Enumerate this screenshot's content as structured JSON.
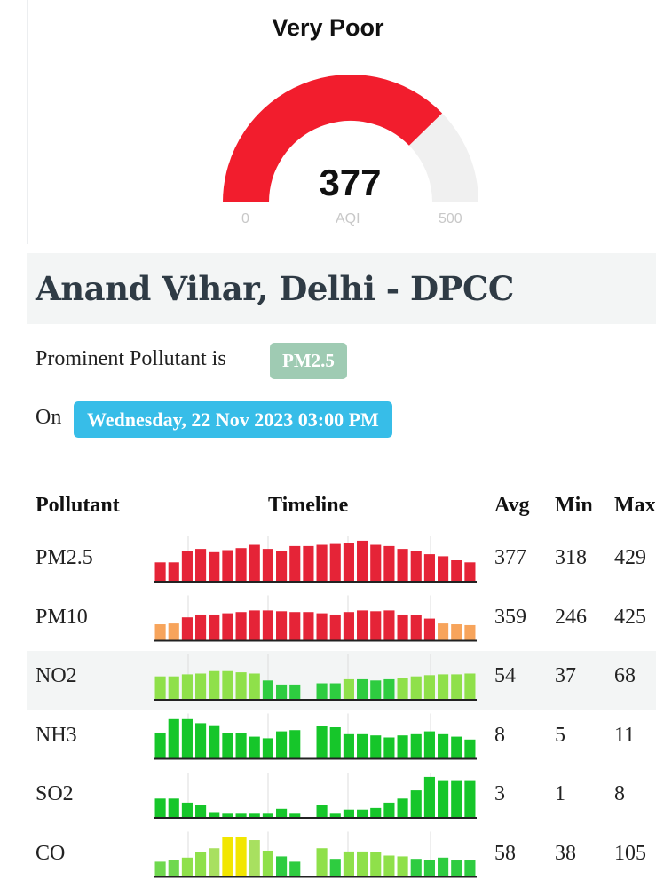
{
  "gauge": {
    "status": "Very Poor",
    "value": "377",
    "min": "0",
    "max": "500",
    "unit": "AQI",
    "fill_fraction": 0.754,
    "color_fill": "#f21d2d",
    "color_track": "#f0f0f0"
  },
  "station": {
    "name": "Anand Vihar, Delhi - DPCC"
  },
  "prominent": {
    "label": "Prominent Pollutant is",
    "value": "PM2.5",
    "color": "#9fcbb3"
  },
  "timestamp": {
    "label": "On",
    "value": "Wednesday, 22 Nov 2023 03:00 PM",
    "color": "#37bde8"
  },
  "table": {
    "headers": {
      "pollutant": "Pollutant",
      "timeline": "Timeline",
      "avg": "Avg",
      "min": "Min",
      "max": "Max"
    },
    "rows": [
      {
        "name": "PM2.5",
        "avg": "377",
        "min": "318",
        "max": "429",
        "timeline": [
          0.45,
          0.45,
          0.72,
          0.78,
          0.7,
          0.75,
          0.8,
          0.88,
          0.78,
          0.72,
          0.85,
          0.85,
          0.88,
          0.9,
          0.92,
          0.98,
          0.88,
          0.85,
          0.78,
          0.72,
          0.65,
          0.6,
          0.5,
          0.45
        ],
        "colors": [
          "#e52437",
          "#e52437",
          "#e52437",
          "#e52437",
          "#e52437",
          "#e52437",
          "#e52437",
          "#e52437",
          "#e52437",
          "#e52437",
          "#e52437",
          "#e52437",
          "#e52437",
          "#e52437",
          "#e52437",
          "#e52437",
          "#e52437",
          "#e52437",
          "#e52437",
          "#e52437",
          "#e52437",
          "#e52437",
          "#e52437",
          "#e52437"
        ]
      },
      {
        "name": "PM10",
        "avg": "359",
        "min": "246",
        "max": "425",
        "timeline": [
          0.38,
          0.4,
          0.55,
          0.62,
          0.62,
          0.65,
          0.68,
          0.72,
          0.72,
          0.7,
          0.68,
          0.68,
          0.65,
          0.62,
          0.68,
          0.72,
          0.7,
          0.72,
          0.62,
          0.6,
          0.52,
          0.4,
          0.38,
          0.36
        ],
        "colors": [
          "#f7a45b",
          "#f7a45b",
          "#e52437",
          "#e52437",
          "#e52437",
          "#e52437",
          "#e52437",
          "#e52437",
          "#e52437",
          "#e52437",
          "#e52437",
          "#e52437",
          "#e52437",
          "#e52437",
          "#e52437",
          "#e52437",
          "#e52437",
          "#e52437",
          "#e52437",
          "#e52437",
          "#e52437",
          "#f7a45b",
          "#f7a45b",
          "#f7a45b"
        ]
      },
      {
        "name": "NO2",
        "avg": "54",
        "min": "37",
        "max": "68",
        "timeline": [
          0.55,
          0.55,
          0.6,
          0.62,
          0.68,
          0.68,
          0.65,
          0.62,
          0.45,
          0.35,
          0.35,
          0.0,
          0.38,
          0.38,
          0.48,
          0.48,
          0.45,
          0.48,
          0.52,
          0.55,
          0.58,
          0.6,
          0.6,
          0.62
        ],
        "colors": [
          "#8fe04a",
          "#8fe04a",
          "#8fe04a",
          "#8fe04a",
          "#8fe04a",
          "#8fe04a",
          "#8fe04a",
          "#8fe04a",
          "#2ecc40",
          "#2ecc40",
          "#2ecc40",
          "#2ecc40",
          "#2ecc40",
          "#2ecc40",
          "#8fe04a",
          "#2ecc40",
          "#2ecc40",
          "#2ecc40",
          "#8fe04a",
          "#8fe04a",
          "#8fe04a",
          "#8fe04a",
          "#8fe04a",
          "#8fe04a"
        ]
      },
      {
        "name": "NH3",
        "avg": "8",
        "min": "5",
        "max": "11",
        "timeline": [
          0.62,
          0.95,
          0.95,
          0.85,
          0.8,
          0.6,
          0.6,
          0.52,
          0.48,
          0.65,
          0.68,
          0.0,
          0.78,
          0.75,
          0.58,
          0.58,
          0.55,
          0.5,
          0.55,
          0.58,
          0.65,
          0.58,
          0.52,
          0.45
        ],
        "colors": [
          "#16c62a",
          "#16c62a",
          "#16c62a",
          "#16c62a",
          "#16c62a",
          "#16c62a",
          "#16c62a",
          "#16c62a",
          "#16c62a",
          "#16c62a",
          "#16c62a",
          "#16c62a",
          "#16c62a",
          "#16c62a",
          "#16c62a",
          "#16c62a",
          "#16c62a",
          "#16c62a",
          "#16c62a",
          "#16c62a",
          "#16c62a",
          "#16c62a",
          "#16c62a",
          "#16c62a"
        ]
      },
      {
        "name": "SO2",
        "avg": "3",
        "min": "1",
        "max": "8",
        "timeline": [
          0.45,
          0.45,
          0.35,
          0.3,
          0.12,
          0.08,
          0.08,
          0.08,
          0.08,
          0.2,
          0.08,
          0.0,
          0.3,
          0.08,
          0.18,
          0.18,
          0.22,
          0.35,
          0.45,
          0.65,
          0.98,
          0.9,
          0.9,
          0.9
        ],
        "colors": [
          "#16c62a",
          "#16c62a",
          "#16c62a",
          "#16c62a",
          "#16c62a",
          "#16c62a",
          "#16c62a",
          "#16c62a",
          "#16c62a",
          "#16c62a",
          "#16c62a",
          "#16c62a",
          "#16c62a",
          "#16c62a",
          "#16c62a",
          "#16c62a",
          "#16c62a",
          "#16c62a",
          "#16c62a",
          "#16c62a",
          "#16c62a",
          "#16c62a",
          "#16c62a",
          "#16c62a"
        ]
      },
      {
        "name": "CO",
        "avg": "58",
        "min": "38",
        "max": "105",
        "timeline": [
          0.35,
          0.4,
          0.45,
          0.58,
          0.68,
          0.95,
          0.95,
          0.88,
          0.62,
          0.48,
          0.35,
          0.0,
          0.68,
          0.42,
          0.6,
          0.6,
          0.58,
          0.5,
          0.48,
          0.42,
          0.4,
          0.45,
          0.38,
          0.38
        ],
        "colors": [
          "#6fd84e",
          "#6fd84e",
          "#8fe04a",
          "#8fe04a",
          "#a8e060",
          "#f2e600",
          "#f2e600",
          "#a8e060",
          "#8fe04a",
          "#2ecc40",
          "#2ecc40",
          "#2ecc40",
          "#8fe04a",
          "#2ecc40",
          "#8fe04a",
          "#8fe04a",
          "#8fe04a",
          "#8fe04a",
          "#8fe04a",
          "#2ecc40",
          "#2ecc40",
          "#2ecc40",
          "#2ecc40",
          "#2ecc40"
        ]
      }
    ]
  }
}
